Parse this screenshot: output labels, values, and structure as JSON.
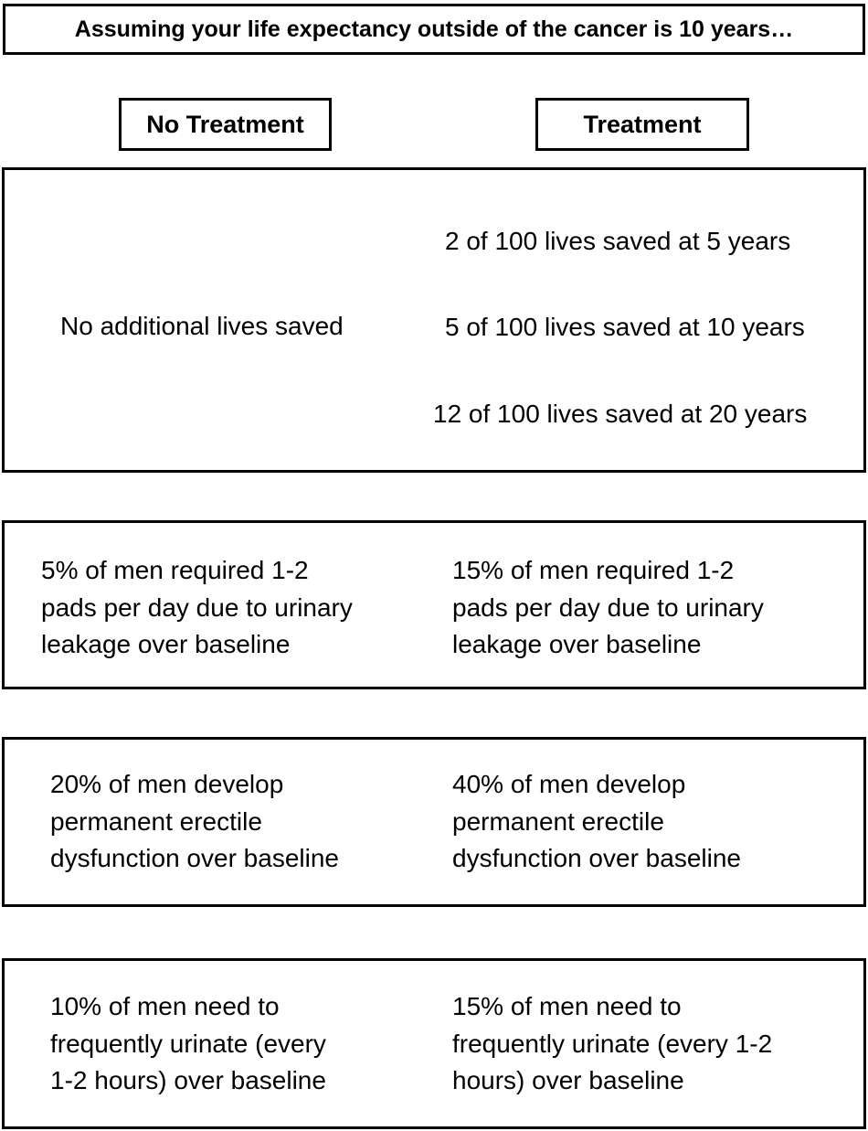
{
  "title": "Assuming your life expectancy outside of the cancer is 10 years…",
  "headers": {
    "no_treatment": "No Treatment",
    "treatment": "Treatment"
  },
  "rows": {
    "lives": {
      "no_treatment": "No additional lives saved",
      "treatment": [
        "2 of 100 lives saved at 5 years",
        "5 of 100 lives saved at 10 years",
        "12 of 100 lives saved at 20 years"
      ]
    },
    "leakage": {
      "no_treatment": [
        "5% of men required 1-2",
        "pads per day due to urinary",
        "leakage over baseline"
      ],
      "treatment": [
        "15% of men required 1-2",
        "pads per day due to urinary",
        "leakage over baseline"
      ]
    },
    "erectile": {
      "no_treatment": [
        "20% of men develop",
        "permanent erectile",
        "dysfunction over baseline"
      ],
      "treatment": [
        "40% of men develop",
        "permanent erectile",
        "dysfunction over baseline"
      ]
    },
    "urination": {
      "no_treatment": [
        "10% of men need to",
        "frequently urinate (every",
        "1-2 hours) over baseline"
      ],
      "treatment": [
        "15% of men need to",
        "frequently urinate (every 1-2",
        "hours) over baseline"
      ]
    }
  }
}
